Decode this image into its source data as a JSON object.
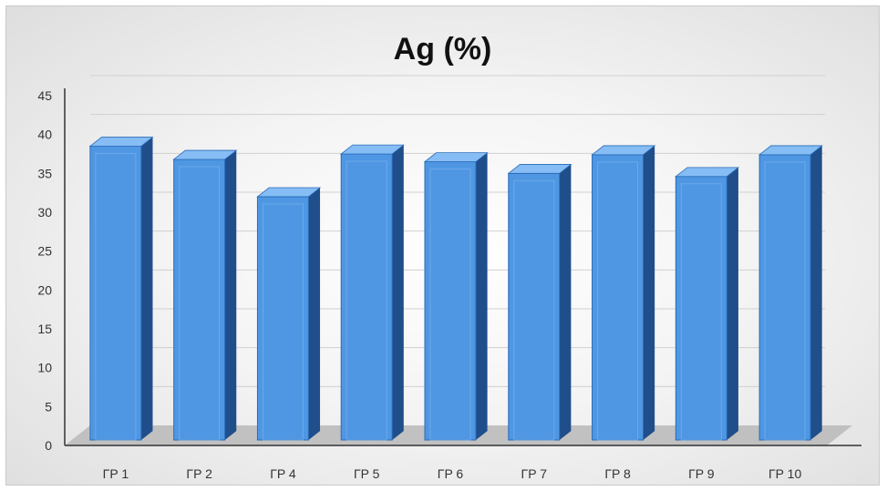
{
  "chart_data": {
    "type": "bar",
    "title": "Ag (%)",
    "xlabel": "",
    "ylabel": "",
    "categories": [
      "ΓΡ 1",
      "ΓΡ 2",
      "ΓΡ 4",
      "ΓΡ 5",
      "ΓΡ 6",
      "ΓΡ 7",
      "ΓΡ 8",
      "ΓΡ 9",
      "ΓΡ 10"
    ],
    "values": [
      38.5,
      36.8,
      32,
      37.5,
      36.5,
      35,
      37.4,
      34.6,
      37.4
    ],
    "ylim": [
      0,
      45
    ],
    "yticks": [
      0,
      5,
      10,
      15,
      20,
      25,
      30,
      35,
      40,
      45
    ],
    "grid": true,
    "legend": "none",
    "colors": {
      "bar_front": "#4f97e3",
      "bar_side": "#1f4e8a",
      "bar_top": "#86bdf4",
      "floor": "#b8b8b8",
      "grid": "#d0d0d0"
    }
  }
}
